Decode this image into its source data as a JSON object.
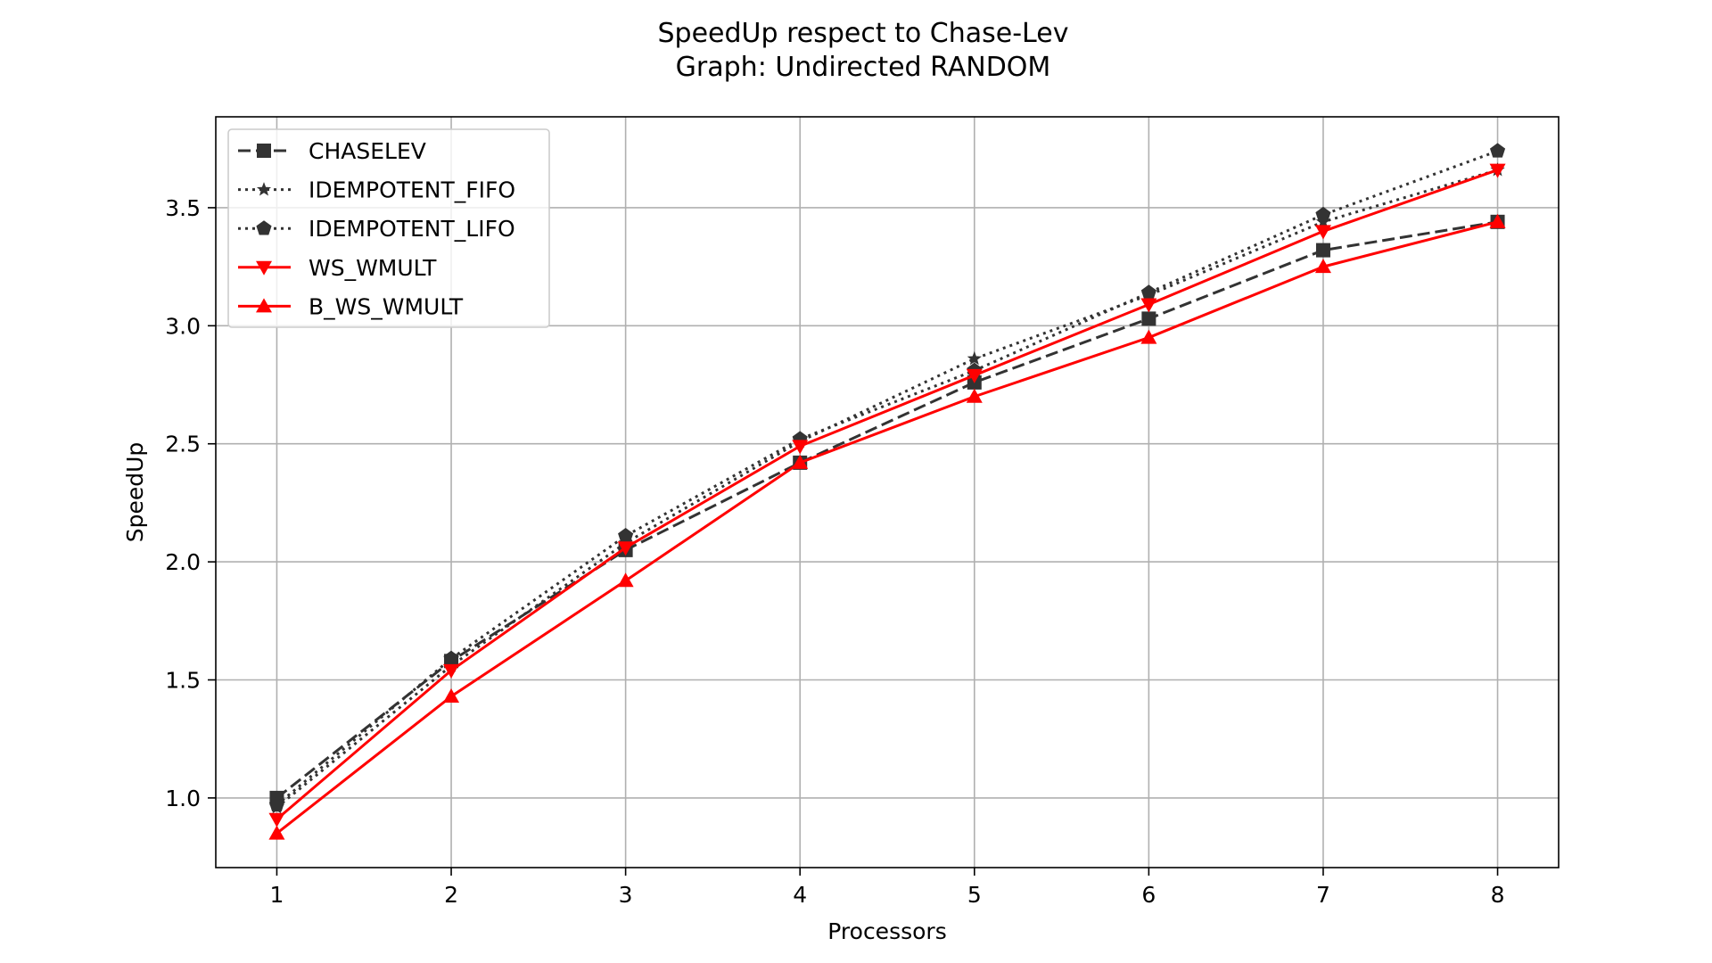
{
  "chart_data": {
    "type": "line",
    "title": "SpeedUp respect to Chase-Lev",
    "subtitle": "Graph: Undirected RANDOM",
    "xlabel": "Processors",
    "ylabel": "SpeedUp",
    "x": [
      1,
      2,
      3,
      4,
      5,
      6,
      7,
      8
    ],
    "xlim": [
      0.65,
      8.35
    ],
    "ylim": [
      0.705,
      3.885
    ],
    "xticks": [
      1,
      2,
      3,
      4,
      5,
      6,
      7,
      8
    ],
    "yticks": [
      1.0,
      1.5,
      2.0,
      2.5,
      3.0,
      3.5
    ],
    "ytick_labels": [
      "1.0",
      "1.5",
      "2.0",
      "2.5",
      "3.0",
      "3.5"
    ],
    "grid": true,
    "legend_position": "top-left",
    "series": [
      {
        "name": "CHASELEV",
        "values": [
          1.0,
          1.58,
          2.05,
          2.42,
          2.76,
          3.03,
          3.32,
          3.44
        ],
        "color": "#333333",
        "line": "dashed",
        "marker": "square"
      },
      {
        "name": "IDEMPOTENT_FIFO",
        "values": [
          0.96,
          1.56,
          2.08,
          2.51,
          2.86,
          3.13,
          3.44,
          3.66
        ],
        "color": "#333333",
        "line": "dotted",
        "marker": "star"
      },
      {
        "name": "IDEMPOTENT_LIFO",
        "values": [
          0.97,
          1.59,
          2.11,
          2.52,
          2.81,
          3.14,
          3.47,
          3.74
        ],
        "color": "#333333",
        "line": "dotted",
        "marker": "pentagon"
      },
      {
        "name": "WS_WMULT",
        "values": [
          0.91,
          1.54,
          2.06,
          2.49,
          2.79,
          3.09,
          3.4,
          3.66
        ],
        "color": "#ff0000",
        "line": "solid",
        "marker": "triangle-down"
      },
      {
        "name": "B_WS_WMULT",
        "values": [
          0.85,
          1.43,
          1.92,
          2.42,
          2.7,
          2.95,
          3.25,
          3.44
        ],
        "color": "#ff0000",
        "line": "solid",
        "marker": "triangle-up"
      }
    ]
  }
}
